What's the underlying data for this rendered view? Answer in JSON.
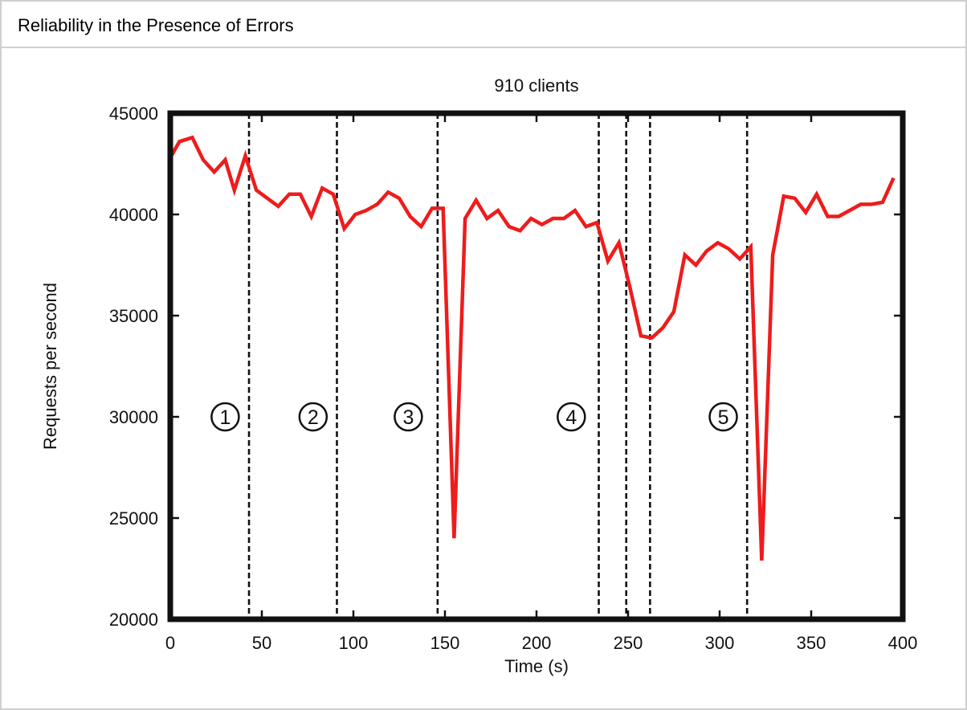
{
  "header": {
    "title": "Reliability in the Presence of Errors"
  },
  "chart_data": {
    "type": "line",
    "title": "910 clients",
    "xlabel": "Time (s)",
    "ylabel": "Requests per second",
    "xlim": [
      0,
      400
    ],
    "ylim": [
      20000,
      45000
    ],
    "xticks": [
      0,
      50,
      100,
      150,
      200,
      250,
      300,
      350,
      400
    ],
    "yticks": [
      20000,
      25000,
      30000,
      35000,
      40000,
      45000
    ],
    "grid": false,
    "series": [
      {
        "color": "#ee1c1c",
        "points": [
          [
            0,
            42800
          ],
          [
            5,
            43600
          ],
          [
            12,
            43800
          ],
          [
            18,
            42700
          ],
          [
            24,
            42100
          ],
          [
            30,
            42700
          ],
          [
            35,
            41200
          ],
          [
            41,
            42900
          ],
          [
            47,
            41200
          ],
          [
            53,
            40800
          ],
          [
            59,
            40400
          ],
          [
            65,
            41000
          ],
          [
            71,
            41000
          ],
          [
            77,
            39900
          ],
          [
            83,
            41300
          ],
          [
            89,
            41000
          ],
          [
            95,
            39300
          ],
          [
            101,
            40000
          ],
          [
            107,
            40200
          ],
          [
            113,
            40500
          ],
          [
            119,
            41100
          ],
          [
            125,
            40800
          ],
          [
            131,
            39900
          ],
          [
            137,
            39400
          ],
          [
            143,
            40300
          ],
          [
            149,
            40300
          ],
          [
            155,
            24000
          ],
          [
            161,
            39800
          ],
          [
            167,
            40700
          ],
          [
            173,
            39800
          ],
          [
            179,
            40200
          ],
          [
            185,
            39400
          ],
          [
            191,
            39200
          ],
          [
            197,
            39800
          ],
          [
            203,
            39500
          ],
          [
            209,
            39800
          ],
          [
            215,
            39800
          ],
          [
            221,
            40200
          ],
          [
            227,
            39400
          ],
          [
            233,
            39600
          ],
          [
            239,
            37700
          ],
          [
            245,
            38600
          ],
          [
            251,
            36400
          ],
          [
            257,
            34000
          ],
          [
            263,
            33900
          ],
          [
            269,
            34400
          ],
          [
            275,
            35200
          ],
          [
            281,
            38000
          ],
          [
            287,
            37500
          ],
          [
            293,
            38200
          ],
          [
            299,
            38600
          ],
          [
            305,
            38300
          ],
          [
            311,
            37800
          ],
          [
            317,
            38400
          ],
          [
            323,
            22900
          ],
          [
            329,
            38000
          ],
          [
            335,
            40900
          ],
          [
            341,
            40800
          ],
          [
            347,
            40100
          ],
          [
            353,
            41000
          ],
          [
            359,
            39900
          ],
          [
            365,
            39900
          ],
          [
            371,
            40200
          ],
          [
            377,
            40500
          ],
          [
            383,
            40500
          ],
          [
            389,
            40600
          ],
          [
            395,
            41800
          ]
        ]
      }
    ],
    "vlines": [
      43,
      91,
      146,
      234,
      249,
      262,
      315
    ],
    "annotations": [
      {
        "text": "①",
        "x": 30,
        "y": 30000
      },
      {
        "text": "②",
        "x": 78,
        "y": 30000
      },
      {
        "text": "③",
        "x": 130,
        "y": 30000
      },
      {
        "text": "④",
        "x": 219,
        "y": 30000
      },
      {
        "text": "⑤",
        "x": 302,
        "y": 30000
      }
    ]
  }
}
